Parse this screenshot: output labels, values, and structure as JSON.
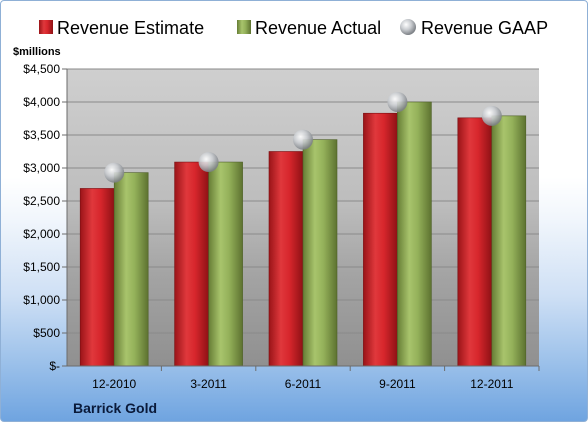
{
  "chart_data": {
    "type": "bar",
    "title": "",
    "unit_label": "$millions",
    "company": "Barrick Gold",
    "categories": [
      "12-2010",
      "3-2011",
      "6-2011",
      "9-2011",
      "12-2011"
    ],
    "series": [
      {
        "name": "Revenue Estimate",
        "type": "bar",
        "color": "#d7262c",
        "values": [
          2690,
          3090,
          3250,
          3830,
          3760
        ]
      },
      {
        "name": "Revenue Actual",
        "type": "bar",
        "color": "#94b15a",
        "values": [
          2930,
          3090,
          3430,
          4000,
          3790
        ]
      },
      {
        "name": "Revenue GAAP",
        "type": "marker",
        "color": "#bfc3c8",
        "values": [
          2930,
          3090,
          3430,
          4000,
          3790
        ]
      }
    ],
    "ylim": [
      0,
      4500
    ],
    "yticks": [
      {
        "value": 0,
        "label": "$-"
      },
      {
        "value": 500,
        "label": "$500"
      },
      {
        "value": 1000,
        "label": "$1,000"
      },
      {
        "value": 1500,
        "label": "$1,500"
      },
      {
        "value": 2000,
        "label": "$2,000"
      },
      {
        "value": 2500,
        "label": "$2,500"
      },
      {
        "value": 3000,
        "label": "$3,000"
      },
      {
        "value": 3500,
        "label": "$3,500"
      },
      {
        "value": 4000,
        "label": "$4,000"
      },
      {
        "value": 4500,
        "label": "$4,500"
      }
    ],
    "grid": true,
    "legend_position": "top"
  }
}
